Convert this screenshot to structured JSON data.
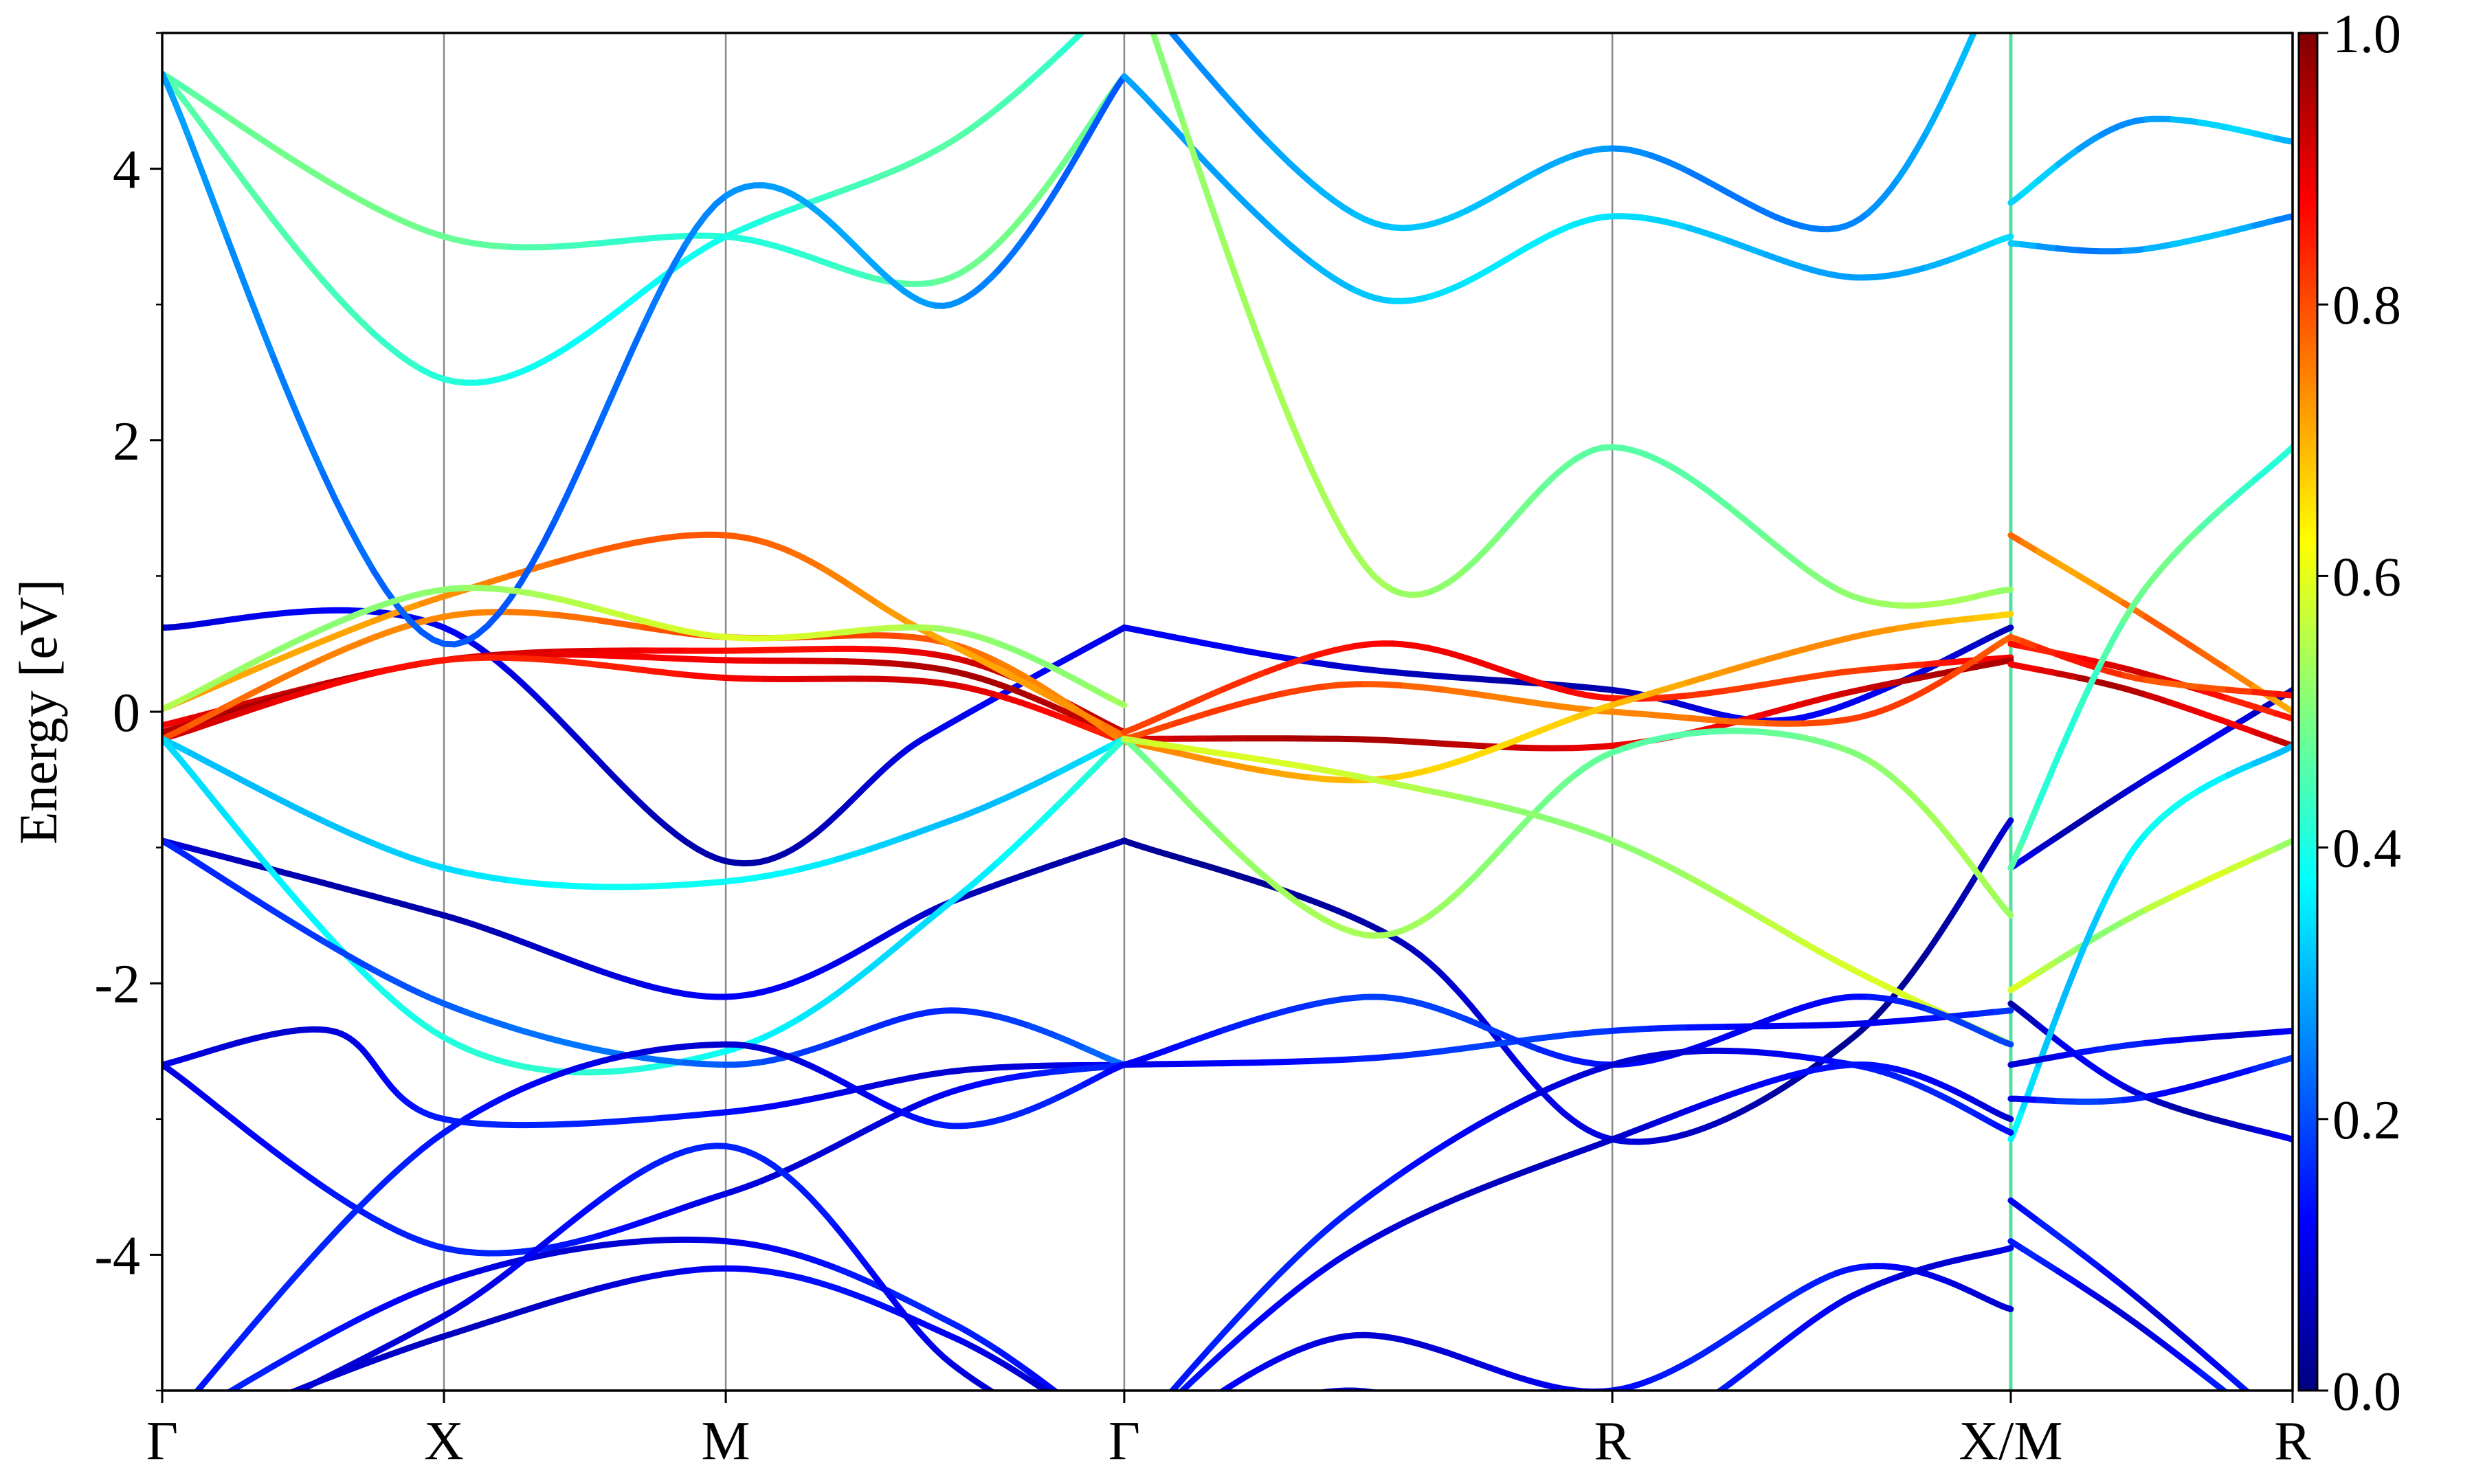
{
  "chart_data": {
    "type": "line",
    "title": "",
    "xlabel": "",
    "ylabel": "Energy [eV]",
    "ylim": [
      -5,
      5
    ],
    "yticks": [
      -4,
      -2,
      0,
      2,
      4
    ],
    "y_minor_step": 1,
    "grid": "vertical lines at high-symmetry points",
    "x_ticks": [
      {
        "label": "Γ",
        "x": 0.0
      },
      {
        "label": "X",
        "x": 0.5
      },
      {
        "label": "M",
        "x": 1.0
      },
      {
        "label": "Γ",
        "x": 1.707
      },
      {
        "label": "R",
        "x": 2.573
      },
      {
        "label": "X/M",
        "x": 3.28
      },
      {
        "label": "R",
        "x": 3.78
      }
    ],
    "xlim": [
      0.0,
      3.78
    ],
    "path_break_x": 3.28,
    "colorbar": {
      "colormap": "jet",
      "range": [
        0.0,
        1.0
      ],
      "ticks": [
        "0.0",
        "0.2",
        "0.4",
        "0.6",
        "0.8",
        "1.0"
      ],
      "placement": "right"
    },
    "colormap_stops": [
      "#00007f",
      "#0000ff",
      "#007fff",
      "#00ffff",
      "#7fff7f",
      "#ffff00",
      "#ff7f00",
      "#ff0000",
      "#7f0000"
    ],
    "series": [
      {
        "w": 0.08,
        "x": [
          0,
          0.5,
          1.0,
          1.35,
          1.707
        ],
        "y": [
          0.62,
          0.62,
          -1.1,
          -0.2,
          0.62
        ]
      },
      {
        "w": 0.08,
        "x": [
          1.707,
          2.1,
          2.573,
          2.9,
          3.28
        ],
        "y": [
          0.62,
          0.33,
          0.16,
          -0.05,
          0.62
        ]
      },
      {
        "w": 0.08,
        "x": [
          3.28,
          3.5,
          3.78
        ],
        "y": [
          -1.15,
          -0.55,
          0.16
        ]
      },
      {
        "w": 0.08,
        "x": [
          0,
          0.5,
          1.0,
          1.4,
          1.707
        ],
        "y": [
          -0.95,
          -1.5,
          -2.1,
          -1.4,
          -0.95
        ]
      },
      {
        "w": 0.06,
        "x": [
          1.707,
          2.2,
          2.573,
          3.0,
          3.28
        ],
        "y": [
          -0.95,
          -1.7,
          -3.15,
          -2.4,
          -0.8
        ]
      },
      {
        "w": 0.08,
        "x": [
          3.28,
          3.5,
          3.78
        ],
        "y": [
          -2.15,
          -2.8,
          -3.15
        ]
      },
      {
        "w": 0.9,
        "x": [
          0,
          0.5,
          1.0,
          1.4,
          1.707
        ],
        "y": [
          -0.1,
          0.38,
          0.45,
          0.4,
          -0.15
        ]
      },
      {
        "w": 0.92,
        "x": [
          0,
          0.5,
          1.0,
          1.4,
          1.707
        ],
        "y": [
          -0.15,
          0.38,
          0.38,
          0.3,
          -0.2
        ]
      },
      {
        "w": 0.88,
        "x": [
          0,
          0.5,
          1.0,
          1.4,
          1.707
        ],
        "y": [
          -0.2,
          0.38,
          0.25,
          0.2,
          -0.22
        ]
      },
      {
        "w": 0.78,
        "x": [
          0,
          0.5,
          1.0,
          1.4,
          1.707
        ],
        "y": [
          -0.2,
          0.7,
          0.55,
          0.5,
          -0.22
        ]
      },
      {
        "w": 0.75,
        "x": [
          0,
          0.5,
          1.0,
          1.35,
          1.707
        ],
        "y": [
          0.02,
          0.85,
          1.3,
          0.6,
          -0.18
        ]
      },
      {
        "w": 0.85,
        "x": [
          1.707,
          2.15,
          2.573,
          3.0,
          3.28
        ],
        "y": [
          -0.15,
          0.5,
          0.1,
          0.3,
          0.4
        ]
      },
      {
        "w": 0.92,
        "x": [
          1.707,
          2.1,
          2.573,
          3.0,
          3.28
        ],
        "y": [
          -0.2,
          -0.2,
          -0.25,
          0.15,
          0.38
        ]
      },
      {
        "w": 0.78,
        "x": [
          1.707,
          2.1,
          2.573,
          3.0,
          3.28
        ],
        "y": [
          -0.2,
          0.2,
          0.0,
          -0.05,
          0.55
        ]
      },
      {
        "w": 0.7,
        "x": [
          1.707,
          2.15,
          2.573,
          3.0,
          3.28
        ],
        "y": [
          -0.22,
          -0.5,
          0.05,
          0.55,
          0.72
        ]
      },
      {
        "w": 0.75,
        "x": [
          3.28,
          3.5,
          3.78
        ],
        "y": [
          1.3,
          0.75,
          0.0
        ]
      },
      {
        "w": 0.88,
        "x": [
          3.28,
          3.5,
          3.78
        ],
        "y": [
          0.5,
          0.3,
          -0.05
        ]
      },
      {
        "w": 0.92,
        "x": [
          3.28,
          3.5,
          3.78
        ],
        "y": [
          0.35,
          0.15,
          -0.25
        ]
      },
      {
        "w": 0.82,
        "x": [
          3.28,
          3.5,
          3.78
        ],
        "y": [
          0.55,
          0.25,
          0.12
        ]
      },
      {
        "w": 0.45,
        "x": [
          0,
          0.5,
          1.0,
          1.4,
          1.707
        ],
        "y": [
          4.7,
          3.5,
          3.5,
          3.2,
          4.68
        ]
      },
      {
        "w": 0.42,
        "x": [
          0,
          0.5,
          1.0,
          1.4,
          1.707
        ],
        "y": [
          4.7,
          2.45,
          3.5,
          4.2,
          5.3
        ]
      },
      {
        "w": 0.25,
        "x": [
          0,
          0.5,
          1.0,
          1.4,
          1.707
        ],
        "y": [
          4.7,
          0.5,
          3.8,
          3.0,
          4.68
        ]
      },
      {
        "w": 0.55,
        "x": [
          0,
          0.5,
          1.0,
          1.4,
          1.707
        ],
        "y": [
          0.02,
          0.9,
          0.55,
          0.6,
          0.05
        ]
      },
      {
        "w": 0.32,
        "x": [
          1.707,
          2.15,
          2.573,
          3.0,
          3.28
        ],
        "y": [
          4.68,
          3.05,
          3.65,
          3.2,
          3.5
        ]
      },
      {
        "w": 0.28,
        "x": [
          1.707,
          2.15,
          2.573,
          3.0,
          3.28
        ],
        "y": [
          5.4,
          3.6,
          4.15,
          3.6,
          5.6
        ]
      },
      {
        "w": 0.5,
        "x": [
          1.707,
          2.15,
          2.573,
          3.0,
          3.28
        ],
        "y": [
          5.6,
          1.0,
          1.95,
          0.85,
          0.9
        ]
      },
      {
        "w": 0.3,
        "x": [
          3.28,
          3.5,
          3.78
        ],
        "y": [
          3.75,
          4.35,
          4.2
        ]
      },
      {
        "w": 0.28,
        "x": [
          3.28,
          3.5,
          3.78
        ],
        "y": [
          3.45,
          3.4,
          3.65
        ]
      },
      {
        "w": 0.45,
        "x": [
          3.28,
          3.5,
          3.78
        ],
        "y": [
          -1.15,
          0.8,
          1.95
        ]
      },
      {
        "w": 0.35,
        "x": [
          0,
          0.5,
          1.0,
          1.4,
          1.707
        ],
        "y": [
          -0.2,
          -1.15,
          -1.25,
          -0.8,
          -0.2
        ]
      },
      {
        "w": 0.38,
        "x": [
          0,
          0.5,
          1.0,
          1.4,
          1.707
        ],
        "y": [
          -0.2,
          -2.4,
          -2.5,
          -1.4,
          -0.2
        ]
      },
      {
        "w": 0.5,
        "x": [
          1.707,
          2.15,
          2.573,
          3.0,
          3.28
        ],
        "y": [
          -0.2,
          -1.65,
          -0.3,
          -0.3,
          -1.5
        ]
      },
      {
        "w": 0.55,
        "x": [
          1.707,
          2.15,
          2.573,
          3.0,
          3.28
        ],
        "y": [
          -0.2,
          -0.5,
          -0.95,
          -1.9,
          -2.45
        ]
      },
      {
        "w": 0.55,
        "x": [
          3.28,
          3.5,
          3.78
        ],
        "y": [
          -2.05,
          -1.5,
          -0.95
        ]
      },
      {
        "w": 0.35,
        "x": [
          3.28,
          3.5,
          3.78
        ],
        "y": [
          -3.15,
          -1.0,
          -0.25
        ]
      },
      {
        "w": 0.12,
        "x": [
          0,
          0.3,
          0.5,
          1.0,
          1.4,
          1.707
        ],
        "y": [
          -2.6,
          -2.35,
          -3.0,
          -2.95,
          -2.65,
          -2.6
        ]
      },
      {
        "w": 0.2,
        "x": [
          0,
          0.5,
          1.0,
          1.4,
          1.707
        ],
        "y": [
          -0.95,
          -2.15,
          -2.6,
          -2.2,
          -2.6
        ]
      },
      {
        "w": 0.12,
        "x": [
          0,
          0.5,
          1.0,
          1.4,
          1.707
        ],
        "y": [
          -2.6,
          -3.95,
          -3.55,
          -2.8,
          -2.6
        ]
      },
      {
        "w": 0.12,
        "x": [
          0,
          0.5,
          1.0,
          1.4,
          1.707
        ],
        "y": [
          -5.3,
          -3.1,
          -2.45,
          -3.05,
          -2.6
        ]
      },
      {
        "w": 0.12,
        "x": [
          0,
          0.5,
          1.0,
          1.4,
          1.707
        ],
        "y": [
          -5.3,
          -4.2,
          -3.9,
          -4.5,
          -5.4
        ]
      },
      {
        "w": 0.1,
        "x": [
          0,
          0.5,
          1.0,
          1.4,
          1.707
        ],
        "y": [
          -5.4,
          -4.6,
          -4.1,
          -4.6,
          -5.4
        ]
      },
      {
        "w": 0.12,
        "x": [
          0,
          0.5,
          1.0,
          1.4,
          1.707
        ],
        "y": [
          -5.5,
          -4.45,
          -3.2,
          -4.8,
          -5.5
        ]
      },
      {
        "w": 0.15,
        "x": [
          1.707,
          2.15,
          2.573,
          3.0,
          3.28
        ],
        "y": [
          -2.6,
          -2.55,
          -2.35,
          -2.3,
          -2.2
        ]
      },
      {
        "w": 0.15,
        "x": [
          1.707,
          2.15,
          2.573,
          3.0,
          3.28
        ],
        "y": [
          -2.6,
          -2.1,
          -2.6,
          -2.1,
          -2.45
        ]
      },
      {
        "w": 0.12,
        "x": [
          1.707,
          2.1,
          2.573,
          3.0,
          3.28
        ],
        "y": [
          -5.4,
          -3.7,
          -2.6,
          -2.6,
          -3.1
        ]
      },
      {
        "w": 0.1,
        "x": [
          1.707,
          2.1,
          2.573,
          3.0,
          3.28
        ],
        "y": [
          -5.4,
          -4.0,
          -3.15,
          -2.6,
          -3.0
        ]
      },
      {
        "w": 0.12,
        "x": [
          1.707,
          2.1,
          2.573,
          3.0,
          3.28
        ],
        "y": [
          -5.5,
          -4.6,
          -5.0,
          -4.1,
          -4.4
        ]
      },
      {
        "w": 0.12,
        "x": [
          1.707,
          2.1,
          2.573,
          3.0,
          3.28
        ],
        "y": [
          -5.5,
          -5.0,
          -5.4,
          -4.3,
          -3.95
        ]
      },
      {
        "w": 0.12,
        "x": [
          3.28,
          3.5,
          3.78
        ],
        "y": [
          -2.6,
          -2.45,
          -2.35
        ]
      },
      {
        "w": 0.15,
        "x": [
          3.28,
          3.5,
          3.78
        ],
        "y": [
          -2.85,
          -2.85,
          -2.55
        ]
      },
      {
        "w": 0.12,
        "x": [
          3.28,
          3.5,
          3.78
        ],
        "y": [
          -3.6,
          -4.3,
          -5.3
        ]
      },
      {
        "w": 0.12,
        "x": [
          3.28,
          3.5,
          3.78
        ],
        "y": [
          -3.9,
          -4.5,
          -5.4
        ]
      }
    ]
  }
}
